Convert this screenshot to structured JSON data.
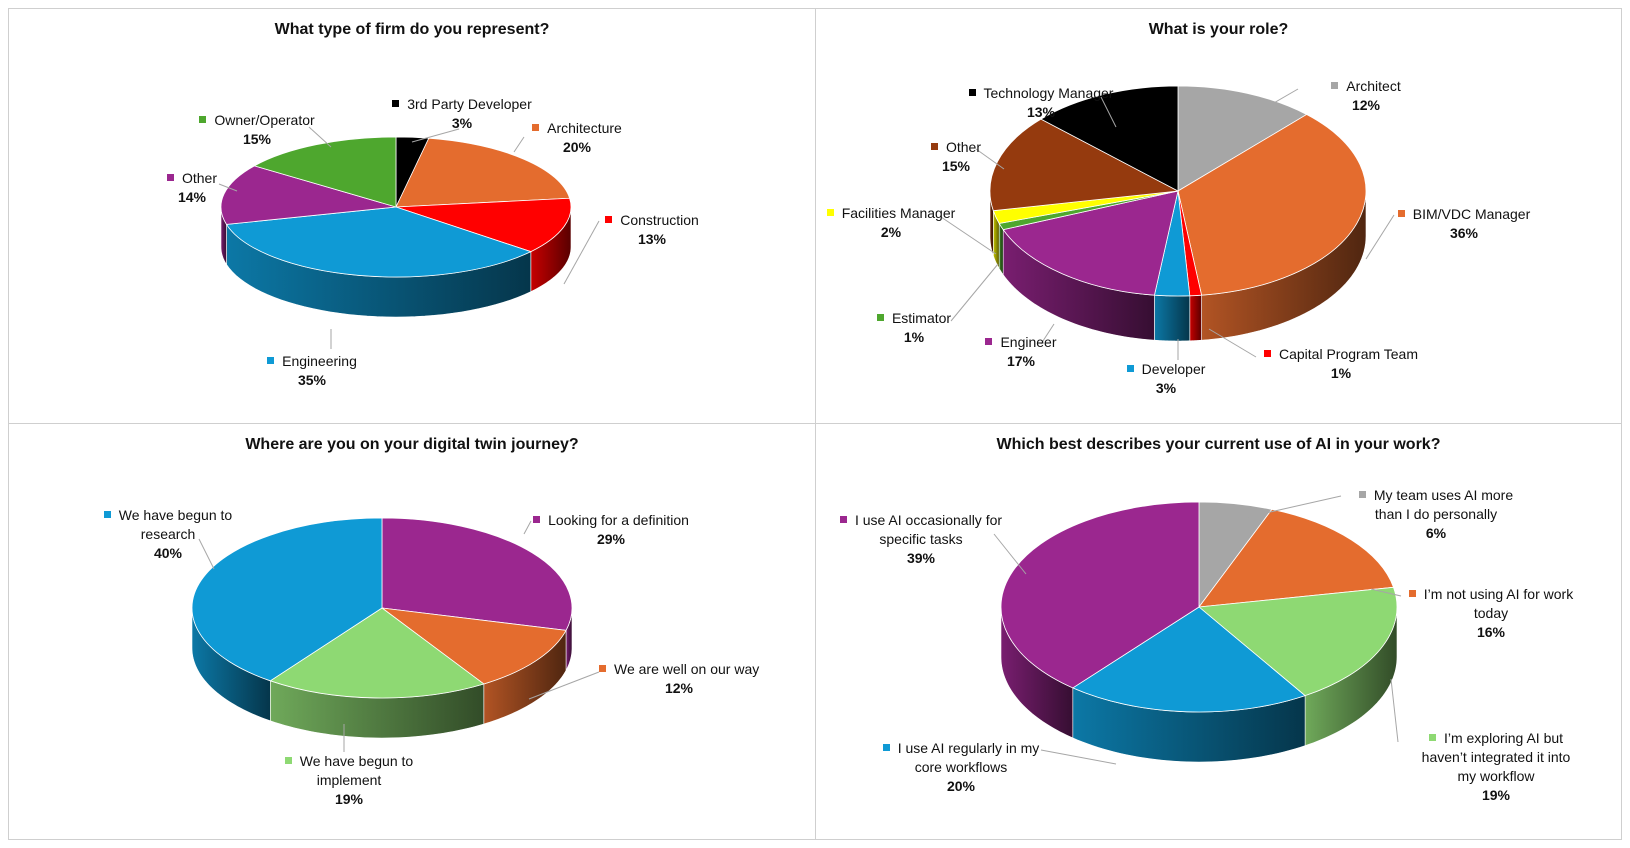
{
  "chart_data": [
    {
      "type": "pie",
      "title": "What type of firm do you represent?",
      "slices": [
        {
          "label": "3rd Party Developer",
          "value": 3,
          "value_label": "3%",
          "color": "#000000"
        },
        {
          "label": "Architecture",
          "value": 20,
          "value_label": "20%",
          "color": "#e46c2e"
        },
        {
          "label": "Construction",
          "value": 13,
          "value_label": "13%",
          "color": "#ff0000"
        },
        {
          "label": "Engineering",
          "value": 35,
          "value_label": "35%",
          "color": "#0f9ad5"
        },
        {
          "label": "Other",
          "value": 14,
          "value_label": "14%",
          "color": "#9b278f"
        },
        {
          "label": "Owner/Operator",
          "value": 15,
          "value_label": "15%",
          "color": "#4ea72e"
        }
      ]
    },
    {
      "type": "pie",
      "title": "What is your role?",
      "slices": [
        {
          "label": "Architect",
          "value": 12,
          "value_label": "12%",
          "color": "#a6a6a6"
        },
        {
          "label": "BIM/VDC Manager",
          "value": 36,
          "value_label": "36%",
          "color": "#e46c2e"
        },
        {
          "label": "Capital Program Team",
          "value": 1,
          "value_label": "1%",
          "color": "#ff0000"
        },
        {
          "label": "Developer",
          "value": 3,
          "value_label": "3%",
          "color": "#0f9ad5"
        },
        {
          "label": "Engineer",
          "value": 17,
          "value_label": "17%",
          "color": "#9b278f"
        },
        {
          "label": "Estimator",
          "value": 1,
          "value_label": "1%",
          "color": "#4ea72e"
        },
        {
          "label": "Facilities Manager",
          "value": 2,
          "value_label": "2%",
          "color": "#ffff00"
        },
        {
          "label": "Other",
          "value": 15,
          "value_label": "15%",
          "color": "#953a0e"
        },
        {
          "label": "Technology Manager",
          "value": 13,
          "value_label": "13%",
          "color": "#000000"
        }
      ]
    },
    {
      "type": "pie",
      "title": "Where are you on your digital twin journey?",
      "slices": [
        {
          "label": "Looking for a definition",
          "value": 29,
          "value_label": "29%",
          "color": "#9b278f"
        },
        {
          "label": "We are well on our way",
          "value": 12,
          "value_label": "12%",
          "color": "#e46c2e"
        },
        {
          "label": "We have begun to implement",
          "value": 19,
          "value_label": "19%",
          "color": "#8ed973"
        },
        {
          "label": "We have begun to research",
          "value": 40,
          "value_label": "40%",
          "color": "#0f9ad5"
        }
      ]
    },
    {
      "type": "pie",
      "title": "Which best describes your current use of AI in your work?",
      "slices": [
        {
          "label": "My team uses AI more than I do personally",
          "value": 6,
          "value_label": "6%",
          "color": "#a6a6a6"
        },
        {
          "label": "I’m not using AI for work today",
          "value": 16,
          "value_label": "16%",
          "color": "#e46c2e"
        },
        {
          "label": "I’m exploring AI but haven’t integrated it into my workflow",
          "value": 19,
          "value_label": "19%",
          "color": "#8ed973"
        },
        {
          "label": "I use AI regularly in my core workflows",
          "value": 20,
          "value_label": "20%",
          "color": "#0f9ad5"
        },
        {
          "label": "I use AI occasionally for specific tasks",
          "value": 39,
          "value_label": "39%",
          "color": "#9b278f"
        }
      ]
    }
  ]
}
